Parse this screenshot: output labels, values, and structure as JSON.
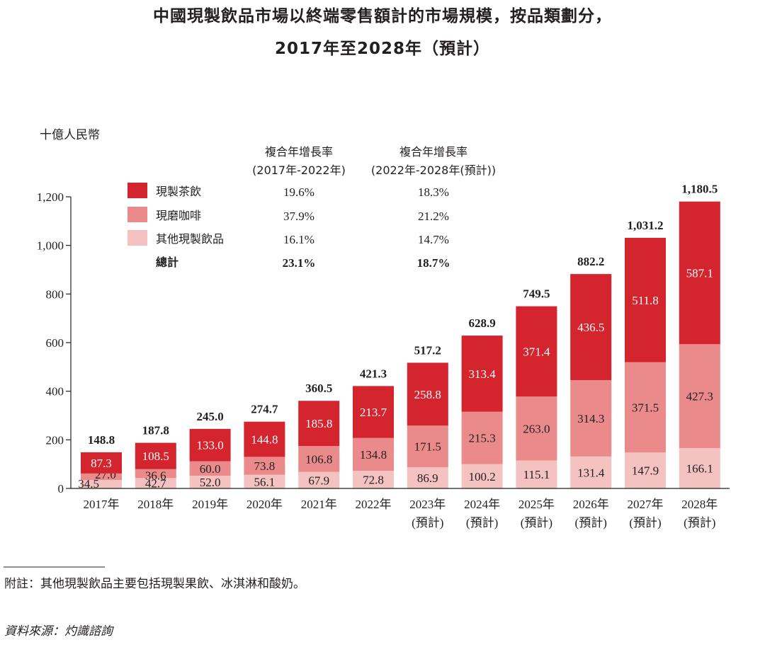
{
  "chart_data": {
    "type": "bar",
    "stacked": true,
    "title_line1": "中國現製飲品市場以終端零售額計的市場規模，按品類劃分，",
    "title_line2": "2017年至2028年（預計）",
    "ylabel": "十億人民幣",
    "ylim": [
      0,
      1200
    ],
    "yticks": [
      "0",
      "200",
      "400",
      "600",
      "800",
      "1,000",
      "1,200"
    ],
    "yticks_values": [
      0,
      200,
      400,
      600,
      800,
      1000,
      1200
    ],
    "categories": [
      "2017年",
      "2018年",
      "2019年",
      "2020年",
      "2021年",
      "2022年",
      "2023年",
      "2024年",
      "2025年",
      "2026年",
      "2027年",
      "2028年"
    ],
    "category_sublabels": [
      "",
      "",
      "",
      "",
      "",
      "",
      "(預計)",
      "(預計)",
      "(預計)",
      "(預計)",
      "(預計)",
      "(預計)"
    ],
    "series": [
      {
        "name": "其他現製飲品",
        "color": "#f5c2c2",
        "label_color": "#231f20",
        "values": [
          34.5,
          42.7,
          52.0,
          56.1,
          67.9,
          72.8,
          86.9,
          100.2,
          115.1,
          131.4,
          147.9,
          166.1
        ],
        "value_labels": [
          "34.5",
          "42.7",
          "52.0",
          "56.1",
          "67.9",
          "72.8",
          "86.9",
          "100.2",
          "115.1",
          "131.4",
          "147.9",
          "166.1"
        ]
      },
      {
        "name": "現磨咖啡",
        "color": "#ea8a8a",
        "label_color": "#231f20",
        "values": [
          27.0,
          36.6,
          60.0,
          73.8,
          106.8,
          134.8,
          171.5,
          215.3,
          263.0,
          314.3,
          371.5,
          427.3
        ],
        "value_labels": [
          "27.0",
          "36.6",
          "60.0",
          "73.8",
          "106.8",
          "134.8",
          "171.5",
          "215.3",
          "263.0",
          "314.3",
          "371.5",
          "427.3"
        ]
      },
      {
        "name": "現製茶飲",
        "color": "#d4242e",
        "label_color": "#ffffff",
        "values": [
          87.3,
          108.5,
          133.0,
          144.8,
          185.8,
          213.7,
          258.8,
          313.4,
          371.4,
          436.5,
          511.8,
          587.1
        ],
        "value_labels": [
          "87.3",
          "108.5",
          "133.0",
          "144.8",
          "185.8",
          "213.7",
          "258.8",
          "313.4",
          "371.4",
          "436.5",
          "511.8",
          "587.1"
        ]
      }
    ],
    "totals": [
      148.8,
      187.8,
      245.0,
      274.7,
      360.5,
      421.3,
      517.2,
      628.9,
      749.5,
      882.2,
      1031.2,
      1180.5
    ],
    "total_labels": [
      "148.8",
      "187.8",
      "245.0",
      "274.7",
      "360.5",
      "421.3",
      "517.2",
      "628.9",
      "749.5",
      "882.2",
      "1,031.2",
      "1,180.5"
    ],
    "legend": {
      "col1_header_line1": "複合年增長率",
      "col1_header_line2": "(2017年-2022年)",
      "col2_header_line1": "複合年增長率",
      "col2_header_line2": "(2022年-2028年(預計))",
      "rows": [
        {
          "name": "現製茶飲",
          "color": "#d4242e",
          "cagr1": "19.6%",
          "cagr2": "18.3%"
        },
        {
          "name": "現磨咖啡",
          "color": "#ea8a8a",
          "cagr1": "37.9%",
          "cagr2": "21.2%"
        },
        {
          "name": "其他現製飲品",
          "color": "#f5c2c2",
          "cagr1": "16.1%",
          "cagr2": "14.7%"
        }
      ],
      "total_row": {
        "name": "總計",
        "cagr1": "23.1%",
        "cagr2": "18.7%"
      }
    }
  },
  "notes": {
    "footnote": "附註：其他現製飲品主要包括現製果飲、冰淇淋和酸奶。",
    "source": "資料來源：灼識諮詢"
  }
}
